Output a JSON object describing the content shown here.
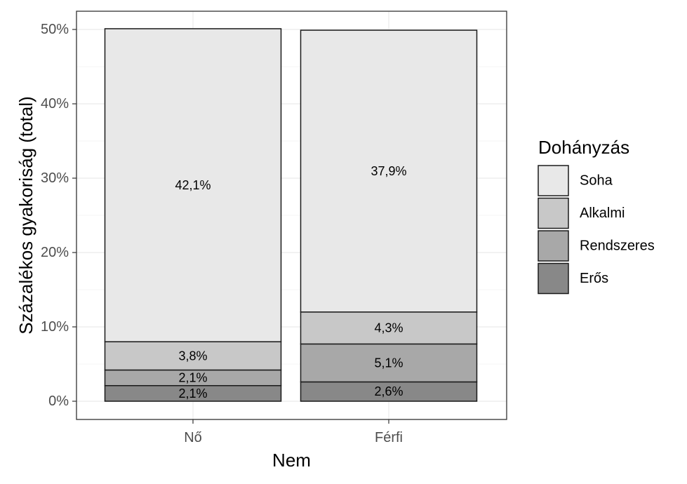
{
  "chart_data": {
    "type": "bar",
    "stacked": true,
    "xlabel": "Nem",
    "ylabel": "Százalékos gyakoriság (total)",
    "categories": [
      "Nő",
      "Férfi"
    ],
    "ylim": [
      0,
      50
    ],
    "yticks": [
      0,
      10,
      20,
      30,
      40,
      50
    ],
    "ytick_labels": [
      "0%",
      "10%",
      "20%",
      "30%",
      "40%",
      "50%"
    ],
    "grid": true,
    "legend": {
      "title": "Dohányzás",
      "position": "right"
    },
    "series": [
      {
        "name": "Erős",
        "color": "#888888",
        "values": [
          2.1,
          2.6
        ],
        "labels": [
          "2,1%",
          "2,6%"
        ]
      },
      {
        "name": "Rendszeres",
        "color": "#a8a8a8",
        "values": [
          2.1,
          5.1
        ],
        "labels": [
          "2,1%",
          "5,1%"
        ]
      },
      {
        "name": "Alkalmi",
        "color": "#c8c8c8",
        "values": [
          3.8,
          4.3
        ],
        "labels": [
          "3,8%",
          "4,3%"
        ]
      },
      {
        "name": "Soha",
        "color": "#e8e8e8",
        "values": [
          42.1,
          37.9
        ],
        "labels": [
          "42,1%",
          "37,9%"
        ]
      }
    ],
    "legend_order": [
      "Soha",
      "Alkalmi",
      "Rendszeres",
      "Erős"
    ]
  }
}
